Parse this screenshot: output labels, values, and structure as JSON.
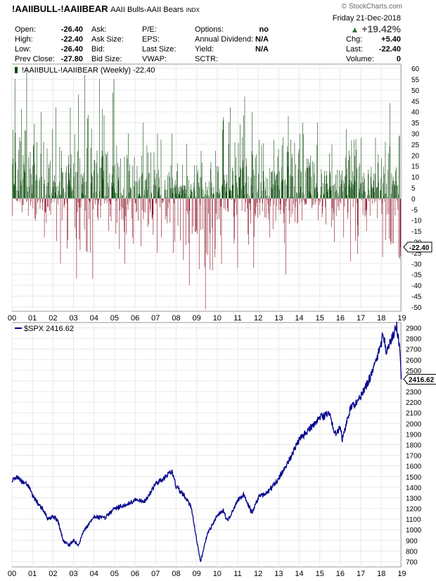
{
  "header": {
    "symbol": "!AAIIBULL-!AAIIBEAR",
    "name": "AAII Bulls-AAII Bears",
    "exchange": "INDX",
    "brand": "© StockCharts.com",
    "date": "Friday  21-Dec-2018",
    "change_pct": "+19.42%",
    "quotes": [
      {
        "label": "Open:",
        "value": "-26.40"
      },
      {
        "label": "High:",
        "value": "-22.40"
      },
      {
        "label": "Low:",
        "value": "-26.40"
      },
      {
        "label": "Prev Close:",
        "value": "-27.80"
      },
      {
        "label": "Ask:",
        "value": ""
      },
      {
        "label": "Ask Size:",
        "value": ""
      },
      {
        "label": "Bid:",
        "value": ""
      },
      {
        "label": "Bid Size:",
        "value": ""
      },
      {
        "label": "P/E:",
        "value": ""
      },
      {
        "label": "EPS:",
        "value": ""
      },
      {
        "label": "Last Size:",
        "value": ""
      },
      {
        "label": "VWAP:",
        "value": ""
      },
      {
        "label": "Options:",
        "value": "no"
      },
      {
        "label": "Annual Dividend:",
        "value": "N/A"
      },
      {
        "label": "Yield:",
        "value": "N/A"
      },
      {
        "label": "SCTR:",
        "value": ""
      },
      {
        "label": "Chg:",
        "value": "+5.40"
      },
      {
        "label": "Last:",
        "value": "-22.40"
      },
      {
        "label": "Volume:",
        "value": "0"
      }
    ]
  },
  "colors": {
    "up": "#0a4a0a",
    "down": "#8b0a20",
    "line": "#00008b",
    "grid": "#e8e8e8"
  },
  "chart_data": [
    {
      "type": "bar",
      "legend": "!AAIIBULL-!AAIIBEAR (Weekly) -22.40",
      "last_label": "-22.40",
      "ylim": [
        -52,
        62
      ],
      "yticks": [
        60,
        55,
        50,
        45,
        40,
        35,
        30,
        25,
        20,
        15,
        10,
        5,
        0,
        -5,
        -10,
        -15,
        -20,
        -25,
        -30,
        -35,
        -40,
        -45,
        -50
      ],
      "x_tick_labels": [
        "00",
        "01",
        "02",
        "03",
        "04",
        "05",
        "06",
        "07",
        "08",
        "09",
        "10",
        "11",
        "12",
        "13",
        "14",
        "15",
        "16",
        "17",
        "18",
        "19"
      ],
      "yearly_values": [
        {
          "year": "2000",
          "max": 60,
          "min": -8
        },
        {
          "year": "2001",
          "max": 40,
          "min": -18
        },
        {
          "year": "2002",
          "max": 42,
          "min": -30
        },
        {
          "year": "2003",
          "max": 57,
          "min": -37
        },
        {
          "year": "2004",
          "max": 55,
          "min": -15
        },
        {
          "year": "2005",
          "max": 30,
          "min": -30
        },
        {
          "year": "2006",
          "max": 35,
          "min": -22
        },
        {
          "year": "2007",
          "max": 30,
          "min": -25
        },
        {
          "year": "2008",
          "max": 25,
          "min": -40
        },
        {
          "year": "2009",
          "max": 22,
          "min": -51
        },
        {
          "year": "2010",
          "max": 42,
          "min": -30
        },
        {
          "year": "2011",
          "max": 47,
          "min": -32
        },
        {
          "year": "2012",
          "max": 27,
          "min": -18
        },
        {
          "year": "2013",
          "max": 38,
          "min": -35
        },
        {
          "year": "2014",
          "max": 35,
          "min": -10
        },
        {
          "year": "2015",
          "max": 25,
          "min": -20
        },
        {
          "year": "2016",
          "max": 32,
          "min": -29
        },
        {
          "year": "2017",
          "max": 28,
          "min": -15
        },
        {
          "year": "2018",
          "max": 44,
          "min": -27
        }
      ]
    },
    {
      "type": "line",
      "legend": "$SPX 2416.62",
      "last_label": "2416.62",
      "ylim": [
        650,
        2950
      ],
      "yticks": [
        2900,
        2800,
        2700,
        2600,
        2500,
        2400,
        2300,
        2200,
        2100,
        2000,
        1900,
        1800,
        1700,
        1600,
        1500,
        1400,
        1300,
        1200,
        1100,
        1000,
        900,
        800,
        700
      ],
      "x_tick_labels": [
        "00",
        "01",
        "02",
        "03",
        "04",
        "05",
        "06",
        "07",
        "08",
        "09",
        "10",
        "11",
        "12",
        "13",
        "14",
        "15",
        "16",
        "17",
        "18",
        "19"
      ],
      "x": [
        2000.0,
        2000.25,
        2000.5,
        2000.75,
        2001.0,
        2001.25,
        2001.5,
        2001.75,
        2002.0,
        2002.25,
        2002.5,
        2002.75,
        2003.0,
        2003.25,
        2003.5,
        2003.75,
        2004.0,
        2004.5,
        2005.0,
        2005.5,
        2006.0,
        2006.5,
        2007.0,
        2007.5,
        2007.8,
        2008.0,
        2008.5,
        2008.75,
        2009.0,
        2009.2,
        2009.5,
        2010.0,
        2010.3,
        2010.5,
        2011.0,
        2011.3,
        2011.7,
        2012.0,
        2012.5,
        2013.0,
        2013.5,
        2014.0,
        2014.5,
        2015.0,
        2015.5,
        2015.7,
        2016.0,
        2016.1,
        2016.5,
        2017.0,
        2017.5,
        2018.0,
        2018.08,
        2018.25,
        2018.5,
        2018.75,
        2018.9,
        2018.97
      ],
      "y": [
        1460,
        1500,
        1450,
        1430,
        1320,
        1250,
        1200,
        1100,
        1130,
        1080,
        900,
        850,
        900,
        860,
        990,
        1050,
        1120,
        1110,
        1200,
        1230,
        1280,
        1270,
        1430,
        1500,
        1550,
        1400,
        1300,
        1200,
        900,
        700,
        950,
        1130,
        1180,
        1080,
        1280,
        1330,
        1150,
        1300,
        1360,
        1480,
        1650,
        1850,
        1950,
        2050,
        2100,
        1900,
        1950,
        1850,
        2150,
        2250,
        2450,
        2750,
        2850,
        2650,
        2800,
        2920,
        2700,
        2416.62
      ]
    }
  ]
}
